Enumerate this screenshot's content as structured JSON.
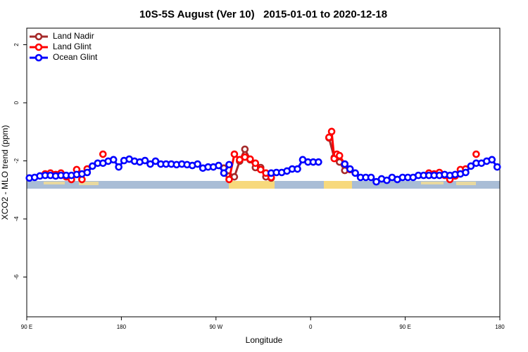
{
  "chart_data": {
    "type": "line",
    "title": "10S-5S August (Ver 10)   2015-01-01 to 2020-12-18",
    "x_label": "Longitude",
    "y_label": "XCO2 - MLO trend (ppm)",
    "xlim": [
      90,
      540
    ],
    "ylim": [
      -7.37,
      2.57
    ],
    "xticks": [
      {
        "value": 90,
        "label": "90 E"
      },
      180,
      {
        "value": 270,
        "label": "90 W"
      },
      {
        "value": 360,
        "label": "0"
      },
      {
        "value": 450,
        "label": "90 E"
      },
      {
        "value": 540,
        "label": "180"
      }
    ],
    "yticks": [
      2,
      0,
      -2,
      -4,
      -6
    ],
    "legend": "top-left",
    "series": [
      {
        "name": "Land Nadir",
        "color": "#a52a2a",
        "x": [
          277.5,
          282.5,
          287.5,
          292.5,
          297.5,
          302.5,
          307.5,
          312.5,
          317.5,
          322.5,
          327.5,
          377.5,
          382.5,
          387.5,
          392.5
        ],
        "values": [
          -2.25,
          -2.52,
          -2.55,
          -2.01,
          -1.6,
          -1.96,
          -2.23,
          -2.23,
          -2.55,
          -2.59,
          null,
          -1.21,
          -1.89,
          -2.04,
          -2.33
        ]
      },
      {
        "name": "Land Glint",
        "color": "#ff0000",
        "x": [
          107.5,
          112.5,
          117.5,
          122.5,
          127.5,
          132.5,
          137.5,
          142.5,
          147.5,
          152.5,
          162.5,
          167.5,
          282.5,
          287.5,
          292.5,
          297.5,
          302.5,
          307.5,
          312.5,
          317.5,
          322.5,
          327.5,
          377.5,
          380,
          382.5,
          385,
          387.5,
          392.5,
          397.5,
          402.5,
          472.5,
          477.5,
          482.5,
          487.5,
          492.5,
          497.5,
          502.5,
          507.5,
          512.5,
          517.5
        ],
        "values": [
          -2.45,
          -2.42,
          -2.47,
          -2.42,
          -2.55,
          -2.64,
          -2.3,
          -2.64,
          -2.28,
          null,
          -1.77,
          null,
          -2.64,
          -1.77,
          -1.96,
          -1.87,
          -1.94,
          -2.08,
          -2.3,
          -2.42,
          -2.57,
          null,
          -1.19,
          -0.99,
          -1.92,
          -1.77,
          -1.82,
          -2.11,
          -2.3,
          null,
          -2.42,
          -2.45,
          -2.4,
          -2.5,
          -2.64,
          -2.52,
          -2.3,
          -2.28,
          null,
          -1.77
        ]
      },
      {
        "name": "Ocean Glint",
        "color": "#0000ff",
        "x": [
          92.5,
          97.5,
          102.5,
          107.5,
          112.5,
          117.5,
          122.5,
          127.5,
          132.5,
          137.5,
          142.5,
          147.5,
          152.5,
          157.5,
          162.5,
          167.5,
          172.5,
          177.5,
          182.5,
          187.5,
          192.5,
          197.5,
          202.5,
          207.5,
          212.5,
          217.5,
          222.5,
          227.5,
          232.5,
          237.5,
          242.5,
          247.5,
          252.5,
          257.5,
          262.5,
          267.5,
          272.5,
          277.5,
          282.5,
          287.5,
          322.5,
          327.5,
          332.5,
          337.5,
          342.5,
          347.5,
          352.5,
          357.5,
          362.5,
          367.5,
          372.5,
          392.5,
          397.5,
          402.5,
          407.5,
          412.5,
          417.5,
          422.5,
          427.5,
          432.5,
          437.5,
          442.5,
          447.5,
          452.5,
          457.5,
          462.5,
          467.5,
          472.5,
          477.5,
          482.5,
          487.5,
          492.5,
          497.5,
          502.5,
          507.5,
          512.5,
          517.5,
          522.5,
          527.5,
          532.5,
          537.5
        ],
        "values": [
          -2.59,
          -2.57,
          -2.52,
          -2.5,
          -2.5,
          -2.52,
          -2.5,
          -2.5,
          -2.5,
          -2.47,
          -2.45,
          -2.4,
          -2.18,
          -2.08,
          -2.08,
          -2.01,
          -1.96,
          -2.21,
          -1.99,
          -1.94,
          -2.01,
          -2.04,
          -1.99,
          -2.11,
          -2.01,
          -2.11,
          -2.11,
          -2.11,
          -2.13,
          -2.11,
          -2.13,
          -2.16,
          -2.11,
          -2.25,
          -2.21,
          -2.21,
          -2.16,
          -2.42,
          -2.13,
          null,
          -2.42,
          -2.4,
          -2.4,
          -2.35,
          -2.28,
          -2.28,
          -1.96,
          -2.04,
          -2.04,
          -2.04,
          null,
          -2.11,
          -2.28,
          -2.42,
          -2.57,
          -2.57,
          -2.57,
          -2.72,
          -2.62,
          -2.67,
          -2.57,
          -2.64,
          -2.57,
          -2.57,
          -2.57,
          -2.5,
          -2.5,
          -2.5,
          -2.5,
          -2.5,
          -2.47,
          -2.5,
          -2.47,
          -2.45,
          -2.4,
          -2.18,
          -2.08,
          -2.08,
          -2.01,
          -1.96,
          -2.21
        ]
      }
    ]
  }
}
